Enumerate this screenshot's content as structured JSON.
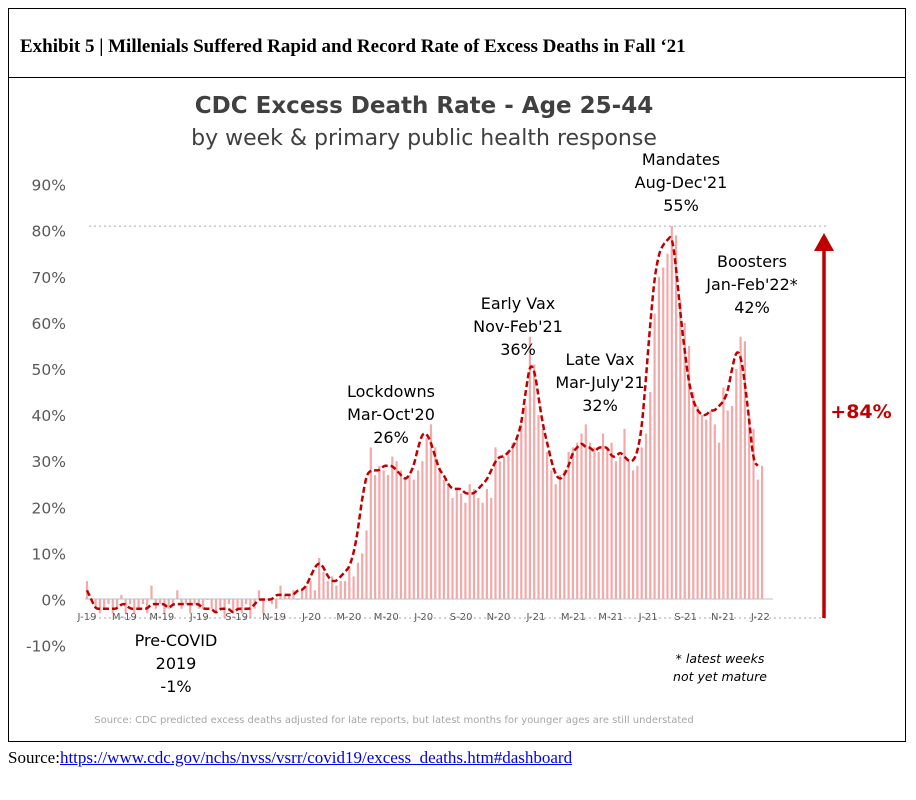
{
  "header": {
    "exhibit_title": "Exhibit 5 | Millenials Suffered Rapid and Record Rate of Excess Deaths in Fall ‘21"
  },
  "source": {
    "label": "Source:",
    "link": "https://www.cdc.gov/nchs/nvss/vsrr/covid19/excess_deaths.htm#dashboard"
  },
  "colors": {
    "bar": "#f4a9a9",
    "trend": "#c00000",
    "arrow": "#c00000",
    "title": "#404040",
    "note": "#a6a6a6"
  },
  "chart_data": {
    "type": "bar",
    "title": "CDC Excess Death Rate - Age 25-44",
    "subtitle": "by week & primary public health response",
    "ylim": [
      -10,
      90
    ],
    "yticks": [
      -10,
      0,
      10,
      20,
      30,
      40,
      50,
      60,
      70,
      80,
      90
    ],
    "ytick_labels": [
      "-10%",
      "0%",
      "10%",
      "20%",
      "30%",
      "40%",
      "50%",
      "60%",
      "70%",
      "80%",
      "90%"
    ],
    "x_tick_labels": [
      {
        "label": "J-19",
        "week": 0
      },
      {
        "label": "M-19",
        "week": 8.7
      },
      {
        "label": "M-19",
        "week": 17.4
      },
      {
        "label": "J-19",
        "week": 26.1
      },
      {
        "label": "S-19",
        "week": 34.8
      },
      {
        "label": "N-19",
        "week": 43.5
      },
      {
        "label": "J-20",
        "week": 52.2
      },
      {
        "label": "M-20",
        "week": 60.9
      },
      {
        "label": "M-20",
        "week": 69.6
      },
      {
        "label": "J-20",
        "week": 78.3
      },
      {
        "label": "S-20",
        "week": 87
      },
      {
        "label": "N-20",
        "week": 95.7
      },
      {
        "label": "J-21",
        "week": 104.4
      },
      {
        "label": "M-21",
        "week": 113.1
      },
      {
        "label": "M-21",
        "week": 121.8
      },
      {
        "label": "J-21",
        "week": 130.5
      },
      {
        "label": "S-21",
        "week": 139.2
      },
      {
        "label": "N-21",
        "week": 147.9
      },
      {
        "label": "J-22",
        "week": 156.6
      }
    ],
    "weekly_excess_pct": [
      4,
      0,
      -2,
      -3,
      -2,
      -1,
      -3,
      -2,
      1,
      -3,
      -1,
      -3,
      -2,
      -1,
      -3,
      3,
      -2,
      -1,
      -3,
      -2,
      -1,
      2,
      -2,
      -1,
      -3,
      -1,
      -2,
      -2,
      0,
      -2,
      -3,
      -2,
      -4,
      -1,
      -3,
      -2,
      -3,
      -1,
      -4,
      -2,
      2,
      -3,
      0,
      -1,
      -2,
      3,
      1,
      1,
      2,
      0,
      2,
      3,
      4,
      2,
      9,
      6,
      4,
      5,
      3,
      4,
      4,
      7,
      5,
      8,
      10,
      15,
      33,
      27,
      29,
      28,
      27,
      31,
      30,
      28,
      26,
      27,
      26,
      28,
      30,
      35,
      38,
      33,
      28,
      26,
      25,
      22,
      24,
      23,
      21,
      25,
      24,
      22,
      21,
      24,
      22,
      33,
      30,
      31,
      32,
      34,
      35,
      38,
      42,
      57,
      51,
      40,
      37,
      32,
      28,
      25,
      27,
      28,
      32,
      33,
      34,
      36,
      38,
      34,
      33,
      32,
      36,
      33,
      34,
      30,
      31,
      37,
      30,
      28,
      29,
      33,
      36,
      45,
      62,
      70,
      72,
      75,
      81,
      79,
      65,
      60,
      55,
      45,
      42,
      40,
      39,
      41,
      38,
      34,
      46,
      41,
      42,
      50,
      57,
      56,
      40,
      37,
      26,
      29
    ],
    "trend_pct": [
      2,
      0,
      -2,
      -2,
      -2,
      -2,
      -2,
      -2,
      -1,
      -1,
      -2,
      -2,
      -2,
      -2,
      -2,
      -1,
      -1,
      -1,
      -1,
      -2,
      -1,
      -1,
      -1,
      -1,
      -1,
      -1,
      -1,
      -2,
      -2,
      -2,
      -3,
      -2,
      -2,
      -2,
      -3,
      -2,
      -2,
      -2,
      -2,
      -1,
      0,
      0,
      0,
      0,
      1,
      1,
      1,
      1,
      1,
      2,
      2,
      3,
      5,
      7,
      8,
      7,
      5,
      4,
      4,
      5,
      6,
      7,
      10,
      15,
      22,
      27,
      28,
      28,
      28,
      29,
      29,
      29,
      28,
      27,
      26,
      27,
      29,
      33,
      36,
      36,
      34,
      31,
      28,
      27,
      25,
      24,
      24,
      24,
      23,
      23,
      23,
      24,
      25,
      26,
      28,
      30,
      31,
      31,
      32,
      33,
      35,
      38,
      45,
      51,
      50,
      44,
      38,
      34,
      30,
      27,
      26,
      27,
      29,
      32,
      33,
      34,
      33,
      33,
      32,
      33,
      33,
      33,
      31,
      31,
      32,
      31,
      30,
      30,
      32,
      37,
      48,
      60,
      70,
      75,
      77,
      78,
      79,
      72,
      62,
      54,
      47,
      43,
      41,
      40,
      40,
      41,
      41,
      42,
      43,
      45,
      50,
      54,
      53,
      47,
      39,
      30,
      29
    ],
    "annotations": [
      {
        "id": "pre-covid",
        "lines": [
          "Pre-COVID",
          "2019",
          "-1%"
        ]
      },
      {
        "id": "lockdowns",
        "lines": [
          "Lockdowns",
          "Mar-Oct'20",
          "26%"
        ]
      },
      {
        "id": "early-vax",
        "lines": [
          "Early Vax",
          "Nov-Feb'21",
          "36%"
        ]
      },
      {
        "id": "late-vax",
        "lines": [
          "Late Vax",
          "Mar-July'21",
          "32%"
        ]
      },
      {
        "id": "mandates",
        "lines": [
          "Mandates",
          "Aug-Dec'21",
          "55%"
        ]
      },
      {
        "id": "boosters",
        "lines": [
          "Boosters",
          "Jan-Feb'22*",
          "42%"
        ]
      }
    ],
    "latest_note": [
      "* latest weeks",
      "not yet mature"
    ],
    "increase_label": "+84%",
    "footnote": "Source: CDC predicted excess deaths adjusted for late reports, but latest months for younger ages are still understated",
    "grid": false
  }
}
